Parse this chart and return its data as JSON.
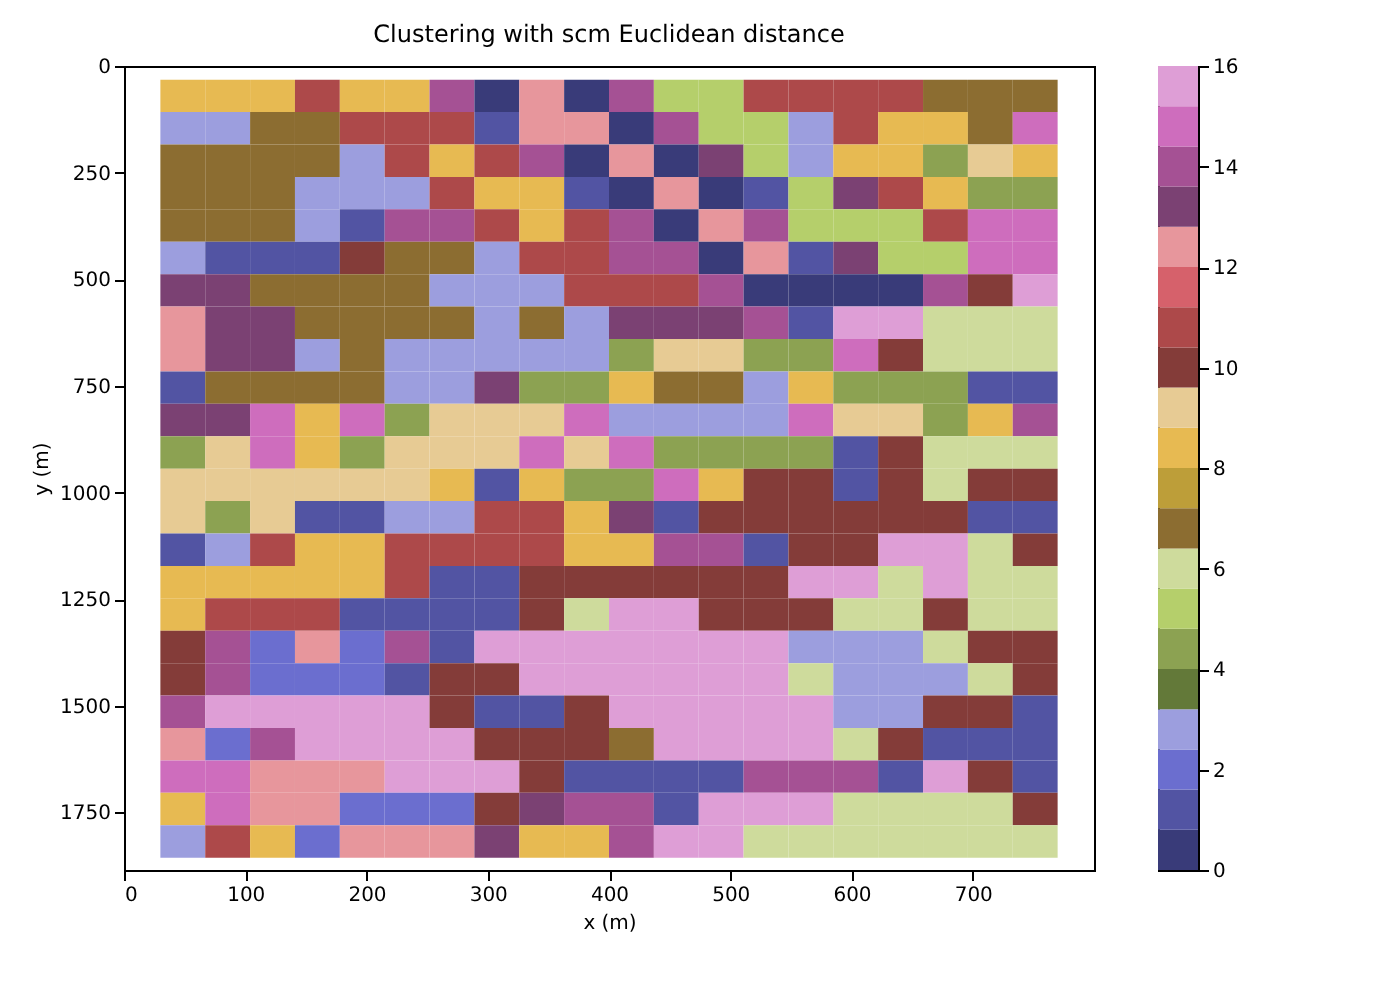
{
  "chart_data": {
    "type": "heatmap",
    "title": "Clustering with scm Euclidean distance",
    "xlabel": "x (m)",
    "ylabel": "y (m)",
    "x": [
      48.5,
      85.5,
      122.5,
      159.5,
      196.5,
      233.5,
      270.5,
      307.5,
      344.5,
      381.5,
      418.5,
      455.5,
      492.5,
      529.5,
      566.5,
      603.5,
      640.5,
      677.5,
      714.5,
      751.5
    ],
    "y": [
      70,
      146,
      222,
      298,
      374,
      450,
      526,
      602,
      678,
      754,
      830,
      906,
      982,
      1058,
      1134,
      1210,
      1286,
      1362,
      1438,
      1514,
      1590,
      1666,
      1742,
      1818
    ],
    "xlim": [
      0,
      800
    ],
    "ylim": [
      1885,
      0
    ],
    "xticks": [
      0,
      100,
      200,
      300,
      400,
      500,
      600,
      700
    ],
    "yticks": [
      0,
      250,
      500,
      750,
      1000,
      1250,
      1500,
      1750
    ],
    "clim": [
      0,
      16
    ],
    "cticks": [
      0,
      2,
      4,
      6,
      8,
      10,
      12,
      14,
      16
    ],
    "colors": [
      "#393b79",
      "#5254a3",
      "#6b6ecf",
      "#9c9ede",
      "#637939",
      "#8ca252",
      "#b5cf6b",
      "#cedb9c",
      "#8c6d31",
      "#bd9e39",
      "#e7ba52",
      "#e7cb94",
      "#843c39",
      "#ad494a",
      "#d6616b",
      "#e7969c",
      "#7b4173",
      "#a55194",
      "#ce6dbd",
      "#de9ed6"
    ],
    "cells": [
      [
        8,
        8,
        8,
        11,
        8,
        8,
        14,
        0,
        12,
        0,
        14,
        5,
        5,
        11,
        11,
        11,
        11,
        7,
        7,
        7
      ],
      [
        3,
        3,
        7,
        7,
        11,
        11,
        11,
        1,
        12,
        12,
        0,
        14,
        5,
        5,
        3,
        11,
        8,
        8,
        7,
        15
      ],
      [
        7,
        7,
        7,
        7,
        3,
        11,
        8,
        11,
        14,
        0,
        12,
        0,
        13,
        5,
        3,
        8,
        8,
        4,
        9,
        8
      ],
      [
        7,
        7,
        7,
        3,
        3,
        3,
        11,
        8,
        8,
        1,
        0,
        12,
        0,
        1,
        5,
        13,
        11,
        8,
        4,
        4
      ],
      [
        7,
        7,
        7,
        3,
        1,
        14,
        14,
        11,
        8,
        11,
        14,
        0,
        12,
        14,
        5,
        5,
        5,
        11,
        15,
        15
      ],
      [
        3,
        1,
        1,
        1,
        10,
        7,
        7,
        3,
        11,
        11,
        14,
        14,
        0,
        12,
        1,
        13,
        5,
        5,
        15,
        15
      ],
      [
        13,
        13,
        7,
        7,
        7,
        7,
        3,
        3,
        3,
        11,
        11,
        11,
        14,
        0,
        0,
        0,
        0,
        14,
        10,
        16
      ],
      [
        12,
        13,
        13,
        7,
        7,
        7,
        7,
        3,
        7,
        3,
        13,
        13,
        13,
        14,
        1,
        16,
        16,
        6,
        6,
        6
      ],
      [
        12,
        13,
        13,
        3,
        7,
        3,
        3,
        3,
        3,
        3,
        4,
        9,
        9,
        4,
        4,
        15,
        10,
        6,
        6,
        6
      ],
      [
        1,
        7,
        7,
        7,
        7,
        3,
        3,
        13,
        4,
        4,
        8,
        7,
        7,
        3,
        8,
        4,
        4,
        4,
        1,
        1
      ],
      [
        13,
        13,
        15,
        8,
        15,
        4,
        9,
        9,
        9,
        15,
        3,
        3,
        3,
        3,
        15,
        9,
        9,
        4,
        8,
        14
      ],
      [
        4,
        9,
        15,
        8,
        4,
        9,
        9,
        9,
        15,
        9,
        15,
        4,
        4,
        4,
        4,
        1,
        10,
        6,
        6,
        6
      ],
      [
        9,
        9,
        9,
        9,
        9,
        9,
        8,
        1,
        8,
        4,
        4,
        15,
        8,
        10,
        10,
        1,
        10,
        6,
        10,
        10
      ],
      [
        9,
        4,
        9,
        1,
        1,
        3,
        3,
        11,
        11,
        8,
        13,
        1,
        10,
        10,
        10,
        10,
        10,
        10,
        1,
        1
      ],
      [
        1,
        3,
        11,
        8,
        8,
        11,
        11,
        11,
        11,
        8,
        8,
        14,
        14,
        1,
        10,
        10,
        16,
        16,
        6,
        10
      ],
      [
        8,
        8,
        8,
        8,
        8,
        11,
        1,
        1,
        10,
        10,
        10,
        10,
        10,
        10,
        16,
        16,
        6,
        16,
        6,
        6
      ],
      [
        8,
        11,
        11,
        11,
        1,
        1,
        1,
        1,
        10,
        6,
        16,
        16,
        10,
        10,
        10,
        6,
        6,
        10,
        6,
        6
      ],
      [
        10,
        14,
        2,
        12,
        2,
        14,
        1,
        16,
        16,
        16,
        16,
        16,
        16,
        16,
        3,
        3,
        3,
        6,
        10,
        10
      ],
      [
        10,
        14,
        2,
        2,
        2,
        1,
        10,
        10,
        16,
        16,
        16,
        16,
        16,
        16,
        6,
        3,
        3,
        3,
        6,
        10
      ],
      [
        14,
        16,
        16,
        16,
        16,
        16,
        10,
        1,
        1,
        10,
        16,
        16,
        16,
        16,
        16,
        3,
        3,
        10,
        10,
        1
      ],
      [
        12,
        2,
        14,
        16,
        16,
        16,
        16,
        10,
        10,
        10,
        7,
        16,
        16,
        16,
        16,
        6,
        10,
        1,
        1,
        1
      ],
      [
        15,
        15,
        12,
        12,
        12,
        16,
        16,
        16,
        10,
        1,
        1,
        1,
        1,
        14,
        14,
        14,
        1,
        16,
        10,
        1
      ],
      [
        8,
        15,
        12,
        12,
        2,
        2,
        2,
        10,
        13,
        14,
        14,
        1,
        16,
        16,
        16,
        6,
        6,
        6,
        6,
        10
      ],
      [
        3,
        11,
        8,
        2,
        12,
        12,
        12,
        13,
        8,
        8,
        14,
        16,
        16,
        6,
        6,
        6,
        6,
        6,
        6,
        6
      ]
    ]
  }
}
